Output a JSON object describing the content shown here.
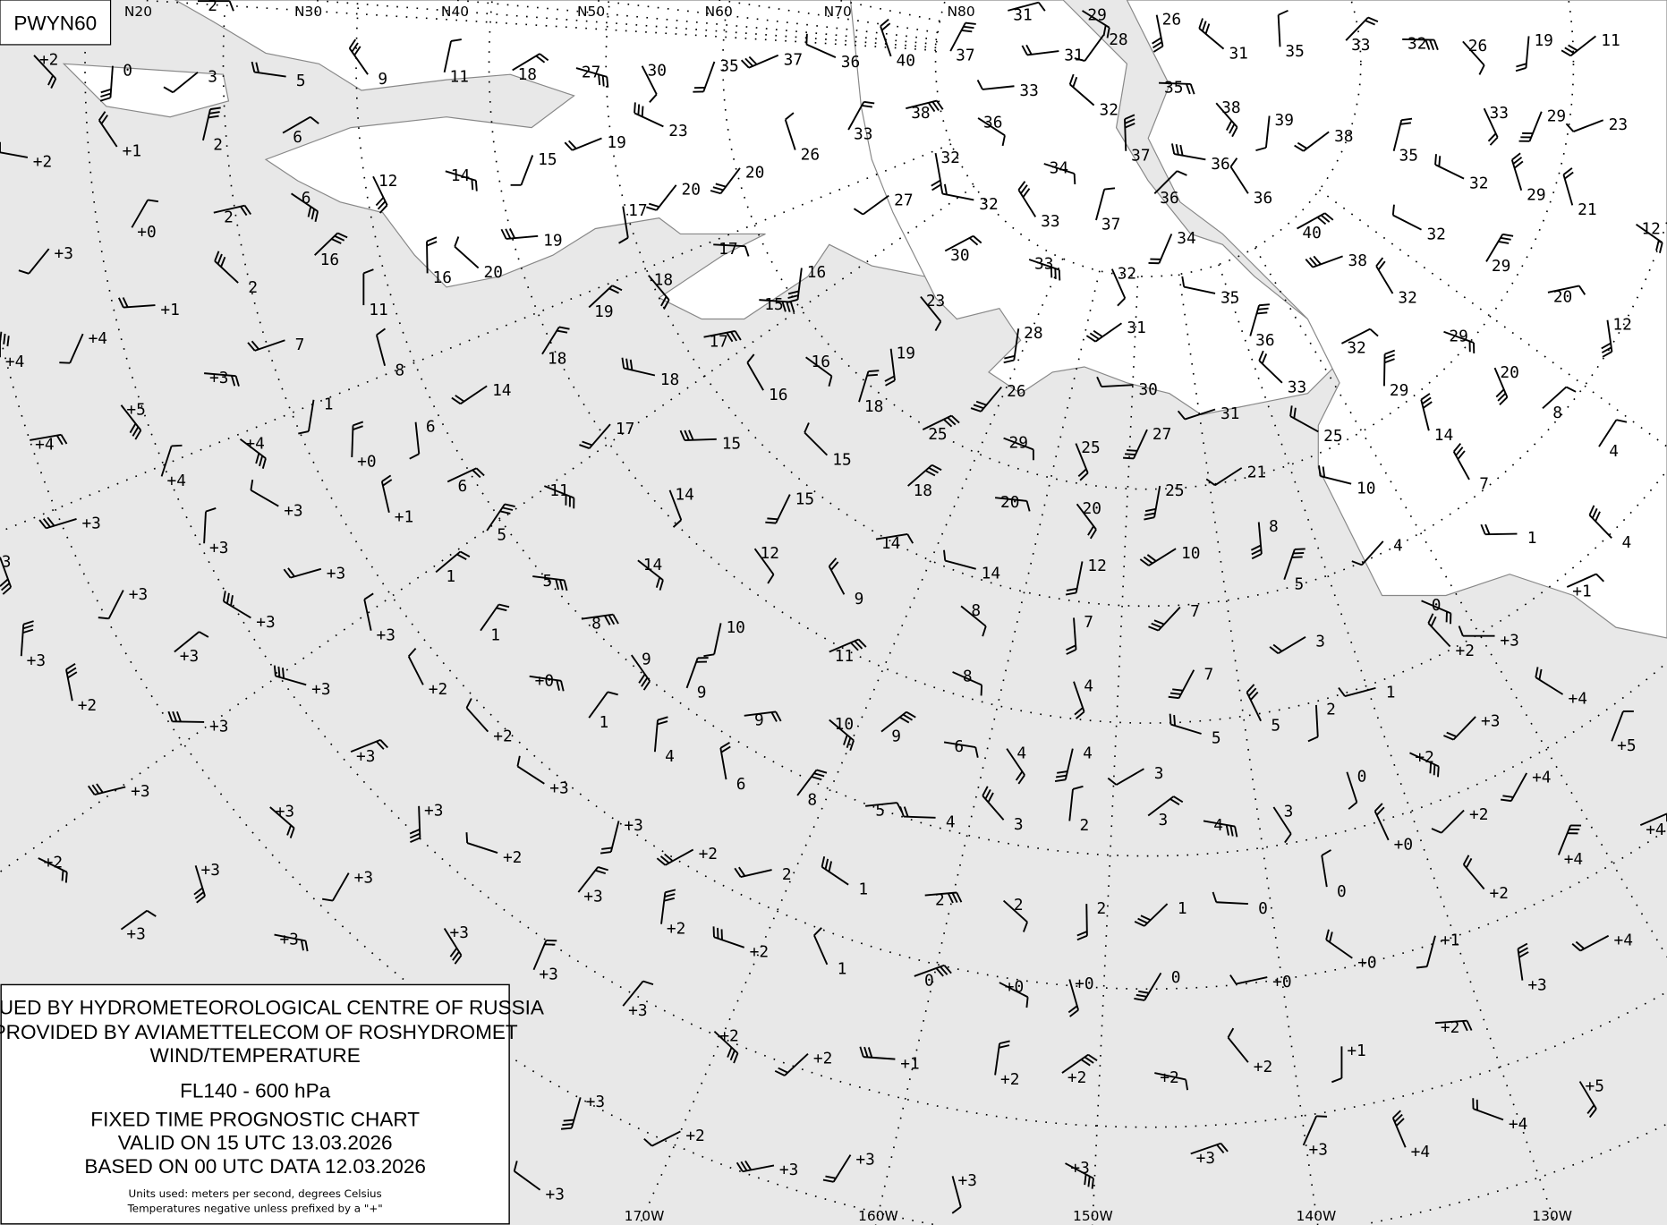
{
  "chart_id": "PWYN60",
  "colors": {
    "sea": "#e8e8e8",
    "land": "#ffffff",
    "coast": "#888888",
    "ink": "#000000"
  },
  "legend": {
    "line1": "ISSUED BY HYDROMETEOROLOGICAL CENTRE OF RUSSIA",
    "line2": "PROVIDED BY AVIAMETTELECOM OF ROSHYDROMET",
    "line3": "WIND/TEMPERATURE",
    "level": "FL140 - 600 hPa",
    "chart_type": "FIXED TIME PROGNOSTIC CHART",
    "valid": "VALID ON 15 UTC 13.03.2026",
    "based": "BASED ON 00 UTC DATA 12.03.2026",
    "units": "Units used: meters per second, degrees Celsius",
    "note": "Temperatures negative unless prefixed by a \"+\""
  },
  "top_labels": [
    "N20",
    "N30",
    "N40",
    "N50",
    "N60",
    "N70",
    "N80"
  ],
  "bottom_labels": [
    "170W",
    "160W",
    "150W",
    "140W",
    "130W"
  ],
  "temperatures": [
    "2",
    "+2",
    "0",
    "3",
    "5",
    "9",
    "11",
    "18",
    "27",
    "30",
    "35",
    "37",
    "36",
    "40",
    "37",
    "31",
    "29",
    "26",
    "28",
    "31",
    "31",
    "35",
    "33",
    "32",
    "26",
    "19",
    "11",
    "+2",
    "+1",
    "2",
    "6",
    "14",
    "12",
    "15",
    "19",
    "23",
    "26",
    "33",
    "38",
    "36",
    "32",
    "20",
    "33",
    "32",
    "37",
    "36",
    "35",
    "38",
    "39",
    "38",
    "36",
    "36",
    "35",
    "40",
    "34",
    "33",
    "29",
    "23",
    "32",
    "29",
    "+0",
    "2",
    "6",
    "17",
    "20",
    "19",
    "20",
    "16",
    "16",
    "17",
    "18",
    "16",
    "27",
    "32",
    "33",
    "37",
    "30",
    "33",
    "32",
    "34",
    "38",
    "32",
    "21",
    "29",
    "20",
    "12",
    "12",
    "+3",
    "+1",
    "2",
    "11",
    "19",
    "15",
    "23",
    "28",
    "31",
    "35",
    "32",
    "36",
    "32",
    "29",
    "20",
    "+4",
    "7",
    "+4",
    "8",
    "18",
    "17",
    "16",
    "19",
    "26",
    "30",
    "33",
    "29",
    "8",
    "+3",
    "+5",
    "1",
    "14",
    "18",
    "16",
    "18",
    "25",
    "29",
    "25",
    "27",
    "31",
    "25",
    "14",
    "4",
    "+4",
    "+4",
    "6",
    "17",
    "15",
    "15",
    "+0",
    "18",
    "20",
    "20",
    "25",
    "21",
    "10",
    "7",
    "+4",
    "6",
    "11",
    "14",
    "15",
    "+3",
    "+3",
    "+1",
    "5",
    "14",
    "14",
    "8",
    "4",
    "1",
    "4",
    "+3",
    "1",
    "5",
    "12",
    "12",
    "10",
    "14",
    "9",
    "5",
    "+1",
    "0",
    "3",
    "+3",
    "+3",
    "+3",
    "+3",
    "1",
    "8",
    "8",
    "7",
    "7",
    "+3",
    "+2",
    "+3",
    "+3",
    "+0",
    "9",
    "10",
    "3",
    "+3",
    "+2",
    "9",
    "11",
    "8",
    "4",
    "7",
    "1",
    "+4",
    "+2",
    "1",
    "9",
    "10",
    "2",
    "+3",
    "+3",
    "+2",
    "4",
    "9",
    "6",
    "4",
    "4",
    "3",
    "5",
    "5",
    "+5",
    "+3",
    "+2",
    "0",
    "+4",
    "+3",
    "+3",
    "6",
    "8",
    "5",
    "+3",
    "+3",
    "+2",
    "4",
    "3",
    "2",
    "3",
    "4",
    "3",
    "+3",
    "+2",
    "+2",
    "+0",
    "+4",
    "+4",
    "+2",
    "+3",
    "+3",
    "2",
    "1",
    "0",
    "+3",
    "2",
    "2",
    "2",
    "1",
    "0",
    "+2",
    "+2",
    "+3",
    "+3",
    "+3",
    "+1",
    "+4",
    "+2",
    "1",
    "+3",
    "0",
    "+0",
    "+0",
    "0",
    "+0",
    "+0",
    "+3",
    "+3",
    "+2",
    "+2",
    "+1",
    "+2",
    "+1",
    "+2",
    "+2",
    "+2",
    "+2",
    "+5",
    "+3",
    "+2",
    "+4",
    "+4",
    "+3",
    "+3",
    "+3",
    "+3",
    "+3",
    "+3",
    "+3"
  ]
}
